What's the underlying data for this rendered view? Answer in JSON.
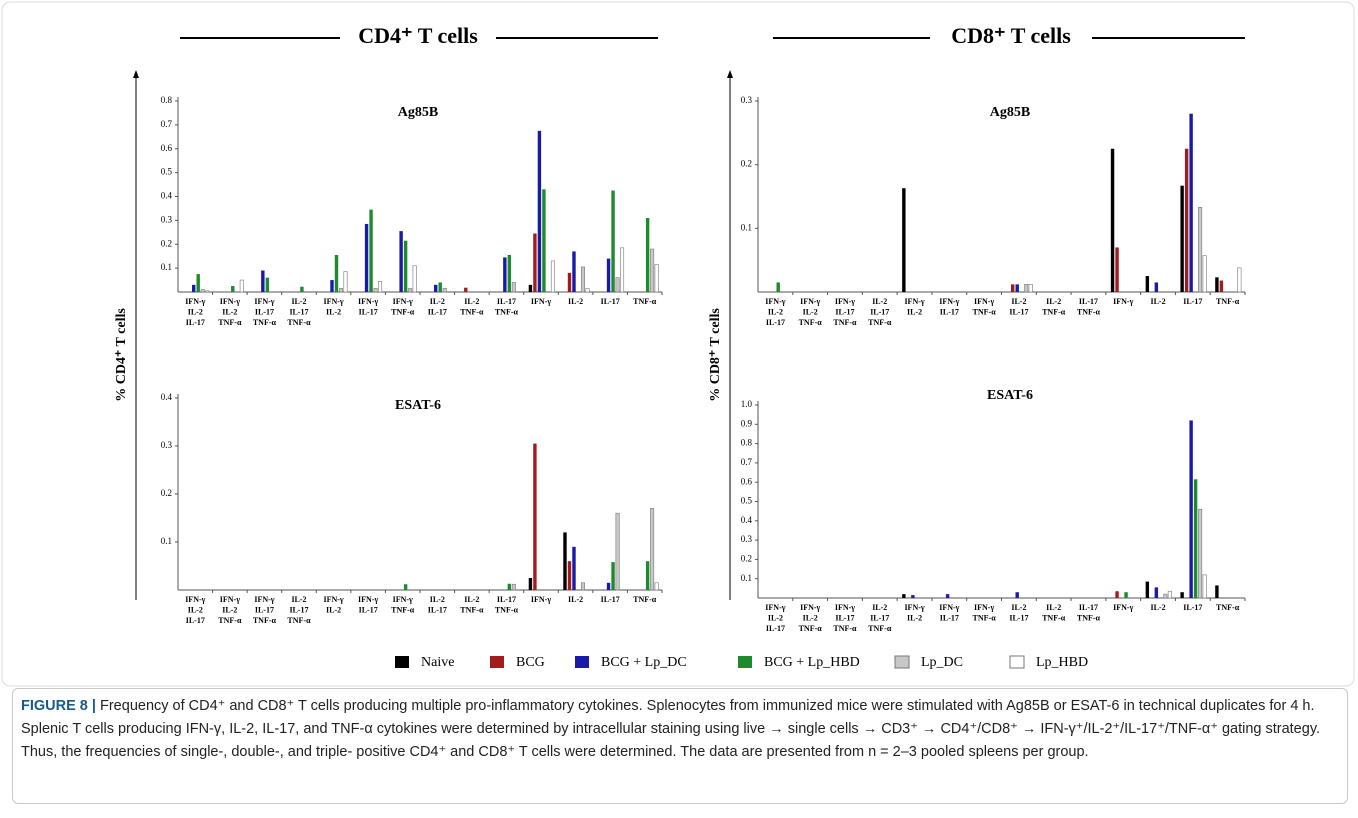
{
  "panels": [
    {
      "header": "CD4⁺ T cells",
      "y_label": "% CD4⁺ T cells"
    },
    {
      "header": "CD8⁺ T cells",
      "y_label": "% CD8⁺ T cells"
    }
  ],
  "caption": {
    "label": "FIGURE 8 |",
    "text": "Frequency of CD4⁺ and CD8⁺ T cells producing multiple pro-inflammatory cytokines. Splenocytes from immunized mice were stimulated with Ag85B or ESAT-6 in technical duplicates for 4 h. Splenic T cells producing IFN-γ, IL-2, IL-17, and TNF-α cytokines were determined by intracellular staining using live → single cells → CD3⁺ → CD4⁺/CD8⁺ → IFN-γ⁺/IL-2⁺/IL-17⁺/TNF-α⁺ gating strategy. Thus, the frequencies of single-, double-, and triple- positive CD4⁺ and CD8⁺ T cells were determined. The data are presented from n = 2–3 pooled spleens per group."
  },
  "chart_data": [
    {
      "type": "bar",
      "title": "Ag85B",
      "categories": [
        [
          "IFN-γ",
          "IL-2",
          "IL-17"
        ],
        [
          "IFN-γ",
          "IL-2",
          "TNF-α"
        ],
        [
          "IFN-γ",
          "IL-17",
          "TNF-α"
        ],
        [
          "IL-2",
          "IL-17",
          "TNF-α"
        ],
        [
          "IFN-γ",
          "IL-2"
        ],
        [
          "IFN-γ",
          "IL-17"
        ],
        [
          "IFN-γ",
          "TNF-α"
        ],
        [
          "IL-2",
          "IL-17"
        ],
        [
          "IL-2",
          "TNF-α"
        ],
        [
          "IL-17",
          "TNF-α"
        ],
        [
          "IFN-γ"
        ],
        [
          "IL-2"
        ],
        [
          "IL-17"
        ],
        [
          "TNF-α"
        ]
      ],
      "ylim": [
        0,
        0.8
      ],
      "yticks": [
        0.1,
        0.2,
        0.3,
        0.4,
        0.5,
        0.6,
        0.7,
        0.8
      ],
      "series": [
        {
          "name": "Naive",
          "color": "#000000",
          "values": [
            0,
            0,
            0,
            0,
            0,
            0,
            0,
            0,
            0,
            0,
            0.03,
            0,
            0,
            0
          ]
        },
        {
          "name": "BCG",
          "color": "#a31c1c",
          "values": [
            0,
            0,
            0,
            0,
            0,
            0,
            0,
            0,
            0.018,
            0,
            0.245,
            0.08,
            0,
            0
          ]
        },
        {
          "name": "BCG + Lp_DC",
          "color": "#1a1aa8",
          "values": [
            0.03,
            0,
            0.09,
            0,
            0.05,
            0.285,
            0.255,
            0.03,
            0,
            0.145,
            0.675,
            0.17,
            0.14,
            0
          ]
        },
        {
          "name": "BCG + Lp_HBD",
          "color": "#1e8a2e",
          "values": [
            0.075,
            0.025,
            0.06,
            0.022,
            0.155,
            0.345,
            0.215,
            0.04,
            0,
            0.155,
            0.43,
            0,
            0.425,
            0.31
          ]
        },
        {
          "name": "Lp_DC",
          "color": "#c8c8c8",
          "values": [
            0.01,
            0,
            0,
            0,
            0.015,
            0.015,
            0.015,
            0.015,
            0,
            0.04,
            0,
            0.105,
            0.06,
            0.18
          ]
        },
        {
          "name": "Lp_HBD",
          "color": "#ffffff",
          "values": [
            0.005,
            0.05,
            0,
            0,
            0.085,
            0.045,
            0.11,
            0,
            0,
            0,
            0.13,
            0.015,
            0.185,
            0.115
          ]
        }
      ]
    },
    {
      "type": "bar",
      "title": "ESAT-6",
      "categories": [
        [
          "IFN-γ",
          "IL-2",
          "IL-17"
        ],
        [
          "IFN-γ",
          "IL-2",
          "TNF-α"
        ],
        [
          "IFN-γ",
          "IL-17",
          "TNF-α"
        ],
        [
          "IL-2",
          "IL-17",
          "TNF-α"
        ],
        [
          "IFN-γ",
          "IL-2"
        ],
        [
          "IFN-γ",
          "IL-17"
        ],
        [
          "IFN-γ",
          "TNF-α"
        ],
        [
          "IL-2",
          "IL-17"
        ],
        [
          "IL-2",
          "TNF-α"
        ],
        [
          "IL-17",
          "TNF-α"
        ],
        [
          "IFN-γ"
        ],
        [
          "IL-2"
        ],
        [
          "IL-17"
        ],
        [
          "TNF-α"
        ]
      ],
      "ylim": [
        0,
        0.4
      ],
      "yticks": [
        0.1,
        0.2,
        0.3,
        0.4
      ],
      "series": [
        {
          "name": "Naive",
          "color": "#000000",
          "values": [
            0,
            0,
            0,
            0,
            0,
            0,
            0,
            0,
            0,
            0,
            0.025,
            0.12,
            0,
            0
          ]
        },
        {
          "name": "BCG",
          "color": "#a31c1c",
          "values": [
            0,
            0,
            0,
            0,
            0,
            0,
            0,
            0,
            0,
            0,
            0.305,
            0.06,
            0,
            0
          ]
        },
        {
          "name": "BCG + Lp_DC",
          "color": "#1a1aa8",
          "values": [
            0,
            0,
            0,
            0,
            0,
            0,
            0,
            0,
            0,
            0,
            0,
            0.09,
            0.015,
            0
          ]
        },
        {
          "name": "BCG + Lp_HBD",
          "color": "#1e8a2e",
          "values": [
            0,
            0,
            0,
            0,
            0,
            0,
            0.012,
            0,
            0,
            0.013,
            0,
            0,
            0.058,
            0.06
          ]
        },
        {
          "name": "Lp_DC",
          "color": "#c8c8c8",
          "values": [
            0,
            0,
            0,
            0,
            0,
            0,
            0,
            0,
            0,
            0.012,
            0,
            0.015,
            0.16,
            0.17
          ]
        },
        {
          "name": "Lp_HBD",
          "color": "#ffffff",
          "values": [
            0,
            0,
            0,
            0,
            0,
            0,
            0,
            0,
            0,
            0,
            0,
            0,
            0,
            0.015
          ]
        }
      ]
    },
    {
      "type": "bar",
      "title": "Ag85B",
      "categories": [
        [
          "IFN-γ",
          "IL-2",
          "IL-17"
        ],
        [
          "IFN-γ",
          "IL-2",
          "TNF-α"
        ],
        [
          "IFN-γ",
          "IL-17",
          "TNF-α"
        ],
        [
          "IL-2",
          "IL-17",
          "TNF-α"
        ],
        [
          "IFN-γ",
          "IL-2"
        ],
        [
          "IFN-γ",
          "IL-17"
        ],
        [
          "IFN-γ",
          "TNF-α"
        ],
        [
          "IL-2",
          "IL-17"
        ],
        [
          "IL-2",
          "TNF-α"
        ],
        [
          "IL-17",
          "TNF-α"
        ],
        [
          "IFN-γ"
        ],
        [
          "IL-2"
        ],
        [
          "IL-17"
        ],
        [
          "TNF-α"
        ]
      ],
      "ylim": [
        0,
        0.3
      ],
      "yticks": [
        0.1,
        0.2,
        0.3
      ],
      "series": [
        {
          "name": "Naive",
          "color": "#000000",
          "values": [
            0,
            0,
            0,
            0,
            0.163,
            0,
            0,
            0,
            0,
            0,
            0.225,
            0.025,
            0.167,
            0.023
          ]
        },
        {
          "name": "BCG",
          "color": "#a31c1c",
          "values": [
            0,
            0,
            0,
            0,
            0,
            0,
            0,
            0.012,
            0,
            0,
            0.07,
            0,
            0.225,
            0.018
          ]
        },
        {
          "name": "BCG + Lp_DC",
          "color": "#1a1aa8",
          "values": [
            0,
            0,
            0,
            0,
            0,
            0,
            0,
            0.012,
            0,
            0,
            0,
            0.015,
            0.28,
            0
          ]
        },
        {
          "name": "BCG + Lp_HBD",
          "color": "#1e8a2e",
          "values": [
            0.015,
            0,
            0,
            0,
            0,
            0,
            0,
            0,
            0,
            0,
            0,
            0,
            0,
            0
          ]
        },
        {
          "name": "Lp_DC",
          "color": "#c8c8c8",
          "values": [
            0,
            0,
            0,
            0,
            0,
            0,
            0,
            0.012,
            0,
            0,
            0,
            0,
            0.133,
            0
          ]
        },
        {
          "name": "Lp_HBD",
          "color": "#ffffff",
          "values": [
            0,
            0,
            0,
            0,
            0,
            0,
            0,
            0.012,
            0,
            0,
            0,
            0,
            0.057,
            0.038
          ]
        }
      ]
    },
    {
      "type": "bar",
      "title": "ESAT-6",
      "categories": [
        [
          "IFN-γ",
          "IL-2",
          "IL-17"
        ],
        [
          "IFN-γ",
          "IL-2",
          "TNF-α"
        ],
        [
          "IFN-γ",
          "IL-17",
          "TNF-α"
        ],
        [
          "IL-2",
          "IL-17",
          "TNF-α"
        ],
        [
          "IFN-γ",
          "IL-2"
        ],
        [
          "IFN-γ",
          "IL-17"
        ],
        [
          "IFN-γ",
          "TNF-α"
        ],
        [
          "IL-2",
          "IL-17"
        ],
        [
          "IL-2",
          "TNF-α"
        ],
        [
          "IL-17",
          "TNF-α"
        ],
        [
          "IFN-γ"
        ],
        [
          "IL-2"
        ],
        [
          "IL-17"
        ],
        [
          "TNF-α"
        ]
      ],
      "ylim": [
        0,
        1.0
      ],
      "yticks": [
        0.1,
        0.2,
        0.3,
        0.4,
        0.5,
        0.6,
        0.7,
        0.8,
        0.9,
        {
          "value": 1.0,
          "label": "1.0"
        }
      ],
      "series": [
        {
          "name": "Naive",
          "color": "#000000",
          "values": [
            0,
            0,
            0,
            0,
            0.02,
            0,
            0,
            0,
            0,
            0,
            0,
            0.085,
            0.03,
            0.065
          ]
        },
        {
          "name": "BCG",
          "color": "#a31c1c",
          "values": [
            0,
            0,
            0,
            0,
            0,
            0,
            0,
            0,
            0,
            0,
            0.035,
            0,
            0,
            0
          ]
        },
        {
          "name": "BCG + Lp_DC",
          "color": "#1a1aa8",
          "values": [
            0,
            0,
            0,
            0,
            0.015,
            0.02,
            0,
            0.03,
            0,
            0,
            0,
            0.055,
            0.92,
            0
          ]
        },
        {
          "name": "BCG + Lp_HBD",
          "color": "#1e8a2e",
          "values": [
            0,
            0,
            0,
            0,
            0,
            0,
            0,
            0,
            0,
            0,
            0.03,
            0,
            0.615,
            0
          ]
        },
        {
          "name": "Lp_DC",
          "color": "#c8c8c8",
          "values": [
            0,
            0,
            0,
            0,
            0,
            0,
            0,
            0,
            0,
            0,
            0,
            0.02,
            0.46,
            0
          ]
        },
        {
          "name": "Lp_HBD",
          "color": "#ffffff",
          "values": [
            0,
            0,
            0,
            0,
            0,
            0,
            0,
            0,
            0,
            0,
            0,
            0.035,
            0.12,
            0
          ]
        }
      ]
    }
  ]
}
